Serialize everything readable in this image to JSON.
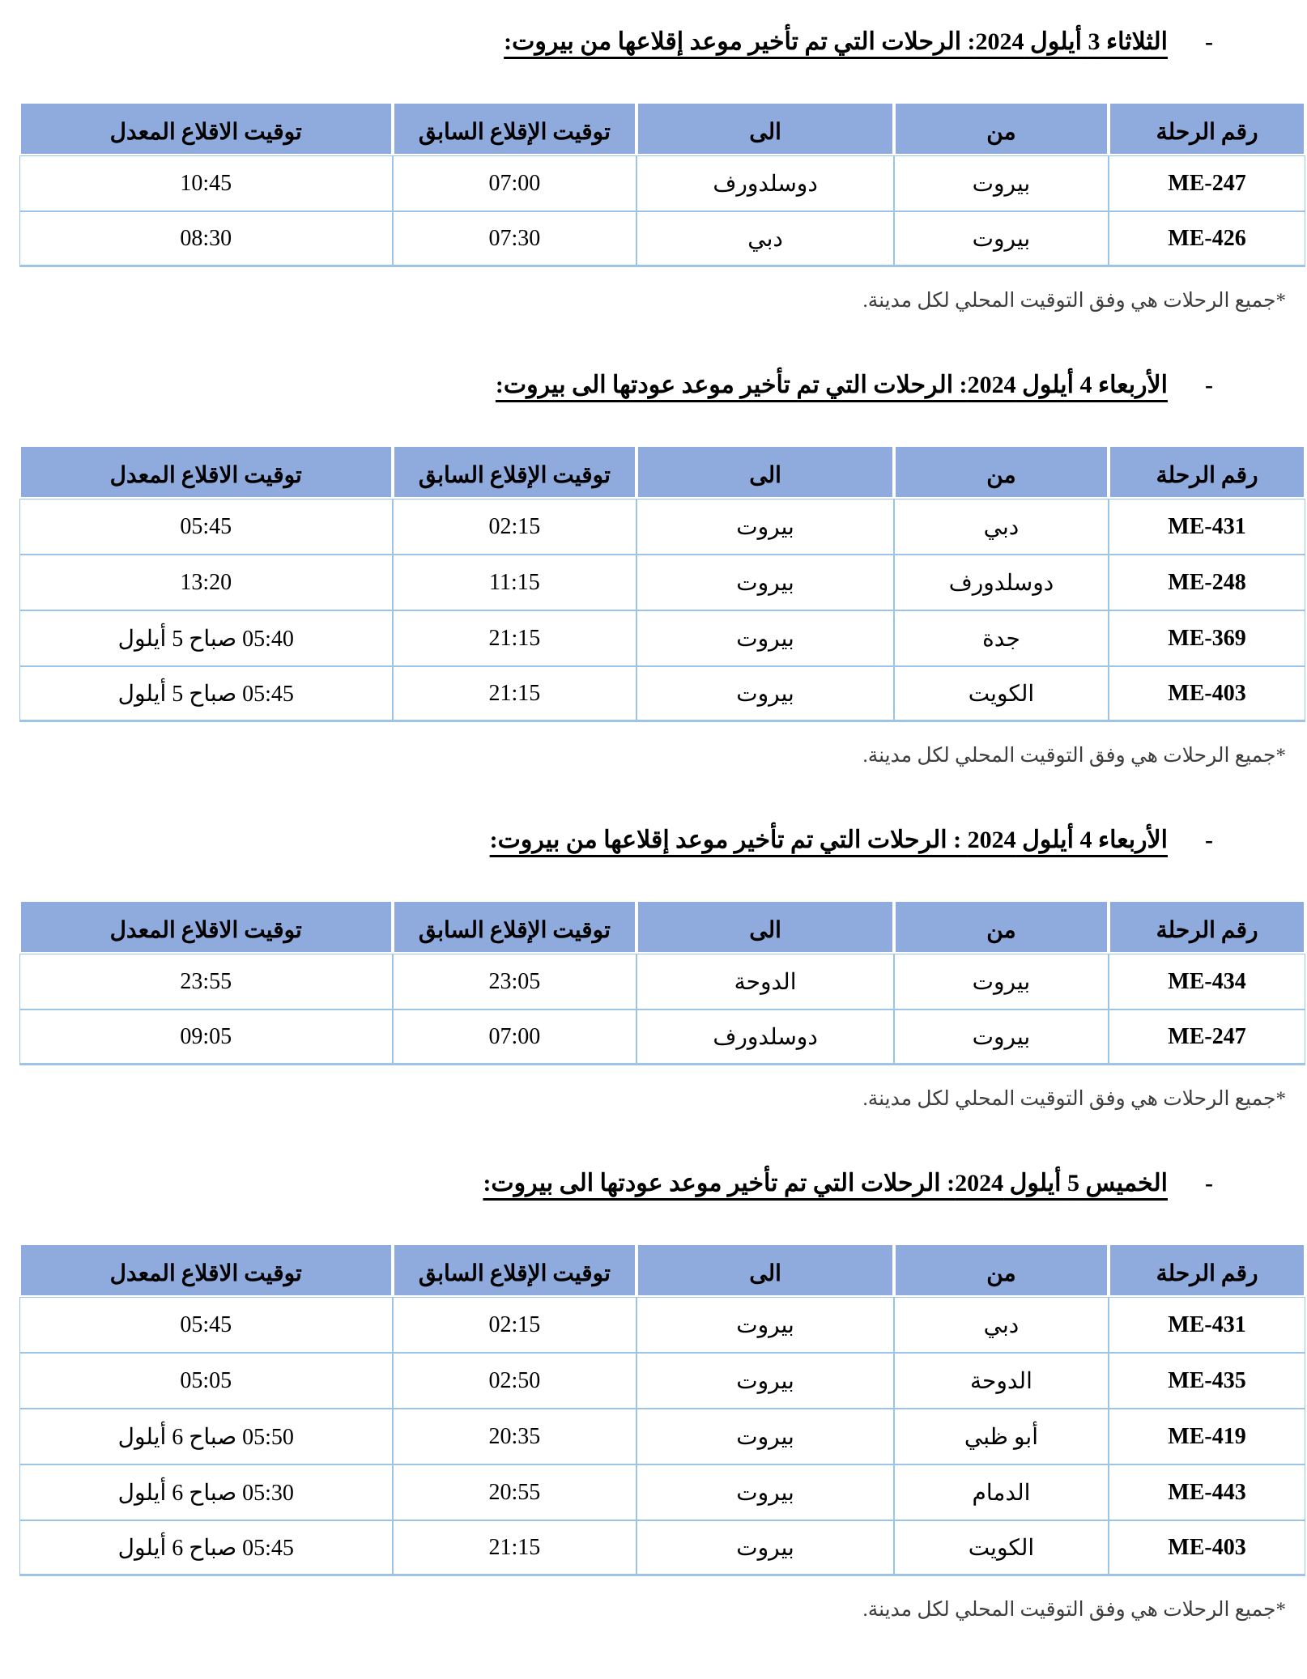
{
  "document": {
    "language": "ar",
    "direction": "rtl",
    "description": "Flight delay schedule tables (departures from and returns to Beirut)"
  },
  "colors": {
    "header_bg": "#8FAADC",
    "table_border": "#9DC3E6",
    "note_text": "#3D3D3D",
    "text": "#000000"
  },
  "list_bullet": "-",
  "footnote": "*جميع الرحلات هي وفق التوقيت المحلي لكل مدينة.",
  "table_headers": {
    "flight": "رقم الرحلة",
    "from": "من",
    "to": "الى",
    "previous_departure": "توقيت الإقلاع السابق",
    "revised_departure": "توقيت الاقلاع المعدل"
  },
  "sections": [
    {
      "title": "الثلاثاء 3 أيلول 2024: الرحلات التي تم تأخير موعد إقلاعها من بيروت:",
      "rows": [
        {
          "flight": "ME-247",
          "from": "بيروت",
          "to": "دوسلدورف",
          "previous_departure": "07:00",
          "revised_departure": "10:45"
        },
        {
          "flight": "ME-426",
          "from": "بيروت",
          "to": "دبي",
          "previous_departure": "07:30",
          "revised_departure": "08:30"
        }
      ]
    },
    {
      "title": "الأربعاء 4 أيلول 2024: الرحلات التي تم تأخير موعد عودتها الى بيروت:",
      "rows": [
        {
          "flight": "ME-431",
          "from": "دبي",
          "to": "بيروت",
          "previous_departure": "02:15",
          "revised_departure": "05:45"
        },
        {
          "flight": "ME-248",
          "from": "دوسلدورف",
          "to": "بيروت",
          "previous_departure": "11:15",
          "revised_departure": "13:20"
        },
        {
          "flight": "ME-369",
          "from": "جدة",
          "to": "بيروت",
          "previous_departure": "21:15",
          "revised_departure": "05:40 صباح 5 أيلول"
        },
        {
          "flight": "ME-403",
          "from": "الكويت",
          "to": "بيروت",
          "previous_departure": "21:15",
          "revised_departure": "05:45 صباح 5 أيلول"
        }
      ]
    },
    {
      "title": "الأربعاء 4 أيلول 2024 : الرحلات التي تم تأخير موعد إقلاعها من بيروت:",
      "rows": [
        {
          "flight": "ME-434",
          "from": "بيروت",
          "to": "الدوحة",
          "previous_departure": "23:05",
          "revised_departure": "23:55"
        },
        {
          "flight": "ME-247",
          "from": "بيروت",
          "to": "دوسلدورف",
          "previous_departure": "07:00",
          "revised_departure": "09:05"
        }
      ]
    },
    {
      "title": "الخميس 5 أيلول 2024: الرحلات التي تم تأخير موعد عودتها الى بيروت:",
      "rows": [
        {
          "flight": "ME-431",
          "from": "دبي",
          "to": "بيروت",
          "previous_departure": "02:15",
          "revised_departure": "05:45"
        },
        {
          "flight": "ME-435",
          "from": "الدوحة",
          "to": "بيروت",
          "previous_departure": "02:50",
          "revised_departure": "05:05"
        },
        {
          "flight": "ME-419",
          "from": "أبو ظبي",
          "to": "بيروت",
          "previous_departure": "20:35",
          "revised_departure": "05:50 صباح 6 أيلول"
        },
        {
          "flight": "ME-443",
          "from": "الدمام",
          "to": "بيروت",
          "previous_departure": "20:55",
          "revised_departure": "05:30 صباح 6 أيلول"
        },
        {
          "flight": "ME-403",
          "from": "الكويت",
          "to": "بيروت",
          "previous_departure": "21:15",
          "revised_departure": "05:45 صباح 6 أيلول"
        }
      ]
    }
  ]
}
